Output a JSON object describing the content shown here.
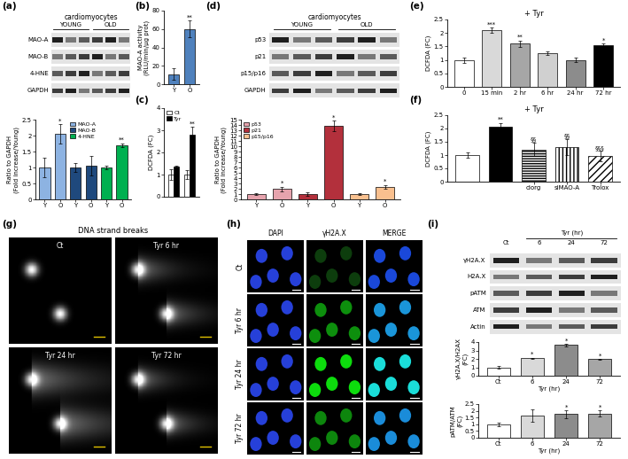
{
  "chart_data": [
    {
      "panel": "(a)",
      "type": "blot",
      "title": "cardiomyocytes",
      "groups": [
        "YOUNG",
        "OLD"
      ],
      "rows": [
        "MAO-A",
        "MAO-B",
        "4-HNE",
        "GAPDH"
      ]
    },
    {
      "type": "bar",
      "ylabel": "Ratio to GAPDH\n(Fold increase/Young)",
      "categories": [
        "Y",
        "O",
        "Y",
        "O",
        "Y",
        "O"
      ],
      "series": [
        {
          "name": "MAO-A",
          "color": "#8db3e2",
          "values": [
            1.0,
            2.05,
            null,
            null,
            null,
            null
          ],
          "errors": [
            0.3,
            0.3,
            null,
            null,
            null,
            null
          ],
          "marks": [
            null,
            "*",
            null,
            null,
            null,
            null
          ]
        },
        {
          "name": "MAO-B",
          "color": "#1f497d",
          "values": [
            null,
            null,
            1.0,
            1.05,
            null,
            null
          ],
          "errors": [
            null,
            null,
            0.15,
            0.3,
            null,
            null
          ],
          "marks": [
            null,
            null,
            null,
            null,
            null,
            null
          ]
        },
        {
          "name": "4-HNE",
          "color": "#00b050",
          "values": [
            null,
            null,
            null,
            null,
            1.0,
            1.7
          ],
          "errors": [
            null,
            null,
            null,
            null,
            0.05,
            0.05
          ],
          "marks": [
            null,
            null,
            null,
            null,
            null,
            "**"
          ]
        }
      ],
      "ylim": [
        0,
        2.5
      ],
      "yticks": [
        0,
        0.5,
        1,
        1.5,
        2,
        2.5
      ],
      "legend": "upper center"
    },
    {
      "panel": "(b)",
      "type": "bar",
      "ylabel": "MAO-A activity\n(RLU/min/µg prot)",
      "categories": [
        "Y",
        "O"
      ],
      "values": [
        11,
        60
      ],
      "errors": [
        6,
        9
      ],
      "marks": [
        null,
        "**"
      ],
      "color": "#4f81bd",
      "ylim": [
        0,
        80
      ],
      "yticks": [
        0,
        20,
        40,
        60,
        80
      ]
    },
    {
      "panel": "(c)",
      "type": "bar",
      "ylabel": "DCFDA (FC)",
      "categories": [
        null,
        null
      ],
      "series": [
        {
          "name": "Ct",
          "color": "#ffffff",
          "values": [
            1.0,
            1.0
          ],
          "errors": [
            0.25,
            0.2
          ],
          "marks": [
            null,
            null
          ]
        },
        {
          "name": "Tyr",
          "color": "#000000",
          "values": [
            1.35,
            2.8
          ],
          "errors": [
            0.05,
            0.35
          ],
          "marks": [
            null,
            "**"
          ]
        }
      ],
      "ylim": [
        0,
        4
      ],
      "yticks": [
        0,
        1,
        2,
        3,
        4
      ],
      "legend": "upper left"
    },
    {
      "panel": "(d)",
      "type": "blot",
      "title": "cardiomyocytes",
      "groups": [
        "YOUNG",
        "OLD"
      ],
      "rows": [
        "p53",
        "p21",
        "p15/p16",
        "GAPDH"
      ]
    },
    {
      "type": "bar",
      "ylabel": "Ratio to GAPDH\n(Fold increase/Young)",
      "categories": [
        "Y",
        "O",
        "Y",
        "O",
        "Y",
        "O"
      ],
      "series": [
        {
          "name": "p53",
          "color": "#e6a3ad",
          "values": [
            1.0,
            1.95,
            null,
            null,
            null,
            null
          ],
          "errors": [
            0.15,
            0.4,
            null,
            null,
            null,
            null
          ],
          "marks": [
            null,
            "*",
            null,
            null,
            null,
            null
          ]
        },
        {
          "name": "p21",
          "color": "#b3303c",
          "values": [
            null,
            null,
            1.0,
            13.8,
            null,
            null
          ],
          "errors": [
            null,
            null,
            0.4,
            1.0,
            null,
            null
          ],
          "marks": [
            null,
            null,
            null,
            "*",
            null,
            null
          ]
        },
        {
          "name": "p15/p16",
          "color": "#f9c08f",
          "values": [
            null,
            null,
            null,
            null,
            1.0,
            2.3
          ],
          "errors": [
            null,
            null,
            null,
            null,
            0.2,
            0.35
          ],
          "marks": [
            null,
            null,
            null,
            null,
            null,
            "*"
          ]
        }
      ],
      "ylim": [
        0,
        15
      ],
      "yticks": [
        0,
        1,
        2,
        3,
        4,
        5,
        6,
        7,
        8,
        9,
        10,
        11,
        12,
        13,
        14,
        15
      ],
      "legend": "upper left"
    },
    {
      "panel": "(e)",
      "type": "bar",
      "title": "+ Tyr",
      "ylabel": "DCFDA (FC)",
      "categories": [
        "0",
        "15 min",
        "2 hr",
        "6 hr",
        "24 hr",
        "72 hr"
      ],
      "values": [
        1.0,
        2.1,
        1.6,
        1.25,
        1.0,
        1.55
      ],
      "errors": [
        0.1,
        0.1,
        0.12,
        0.05,
        0.08,
        0.05
      ],
      "marks": [
        null,
        "***",
        "**",
        null,
        null,
        "*"
      ],
      "colors": [
        "#ffffff",
        "#d9d9d9",
        "#a6a6a6",
        "#d0d0d0",
        "#8c8c8c",
        "#000000"
      ],
      "ylim": [
        0,
        2.5
      ],
      "yticks": [
        0,
        0.5,
        1,
        1.5,
        2,
        2.5
      ]
    },
    {
      "panel": "(f)",
      "type": "bar",
      "title": "+ Tyr",
      "ylabel": "DCFDA (FC)",
      "categories": [
        null,
        null,
        "clorg",
        "siMAO-A",
        "Trolox"
      ],
      "values": [
        1.0,
        2.05,
        1.2,
        1.3,
        0.95
      ],
      "errors": [
        0.1,
        0.15,
        0.25,
        0.3,
        0.2
      ],
      "marks": [
        null,
        "**",
        "§§",
        "§§",
        "§§§"
      ],
      "colors": [
        "#ffffff",
        "#000000",
        "#ffffff",
        "#ffffff",
        "#ffffff"
      ],
      "ylim": [
        0,
        2.5
      ],
      "yticks": [
        0,
        0.5,
        1,
        1.5,
        2,
        2.5
      ]
    },
    {
      "panel": "(g)",
      "type": "comet",
      "title": "DNA strand breaks",
      "labels": [
        "Ct",
        "Tyr 6 hr",
        "Tyr 24 hr",
        "Tyr 72 hr"
      ]
    },
    {
      "panel": "(h)",
      "type": "micrograph",
      "columns": [
        "DAPI",
        "γH2A.X",
        "MERGE"
      ],
      "rows": [
        "Ct",
        "Tyr 6 hr",
        "Tyr 24 hr",
        "Tyr 72 hr"
      ]
    },
    {
      "panel": "(i)",
      "type": "blot",
      "group": "Tyr (hr)",
      "columns": [
        "Ct",
        "6",
        "24",
        "72"
      ],
      "rows": [
        "γH2A.X",
        "H2A.X",
        "pATM",
        "ATM",
        "Actin"
      ]
    },
    {
      "type": "bar",
      "ylabel": "γH2A.X/H2AX\n(FC)",
      "xlabel": "Tyr (hr)",
      "categories": [
        "Ct",
        "6",
        "24",
        "72"
      ],
      "values": [
        1.0,
        2.1,
        3.65,
        1.95
      ],
      "errors": [
        0.15,
        0.05,
        0.15,
        0.05
      ],
      "marks": [
        null,
        "*",
        "*",
        "*"
      ],
      "colors": [
        "#ffffff",
        "#d9d9d9",
        "#8c8c8c",
        "#a6a6a6"
      ],
      "ylim": [
        0,
        4
      ],
      "yticks": [
        0,
        1,
        2,
        3,
        4
      ]
    },
    {
      "type": "bar",
      "ylabel": "pATM/ATM\n(FC)",
      "xlabel": "Tyr (hr)",
      "categories": [
        "Ct",
        "6",
        "24",
        "72"
      ],
      "values": [
        1.0,
        1.65,
        1.75,
        1.8
      ],
      "errors": [
        0.15,
        0.45,
        0.3,
        0.25
      ],
      "marks": [
        null,
        null,
        "*",
        "*"
      ],
      "colors": [
        "#ffffff",
        "#d9d9d9",
        "#8c8c8c",
        "#a6a6a6"
      ],
      "ylim": [
        0,
        2.5
      ],
      "yticks": [
        0,
        0.5,
        1,
        1.5,
        2,
        2.5
      ]
    }
  ]
}
